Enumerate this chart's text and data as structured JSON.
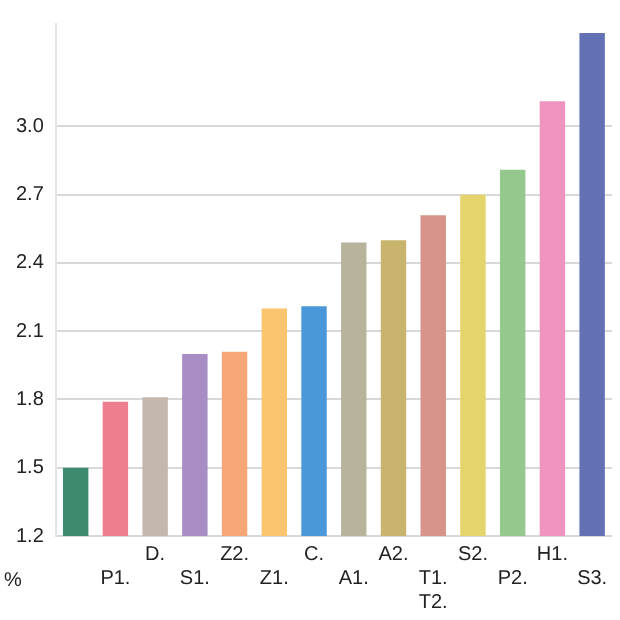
{
  "chart_data": {
    "type": "bar",
    "ylabel": "%",
    "categories": [
      null,
      "P1.",
      "D.",
      "S1.",
      "Z2.",
      "Z1.",
      "C.",
      "A1.",
      "A2.",
      "T1.\nT2.",
      "S2.",
      "P2.",
      "H1.",
      "S3."
    ],
    "values": [
      1.5,
      1.79,
      1.81,
      2.0,
      2.01,
      2.2,
      2.21,
      2.49,
      2.5,
      2.61,
      2.7,
      2.81,
      3.11,
      3.41
    ],
    "colors": [
      "#3e8a6e",
      "#ee7d8e",
      "#c4b8ae",
      "#a88cc4",
      "#f7a678",
      "#fbc46e",
      "#4a98d8",
      "#b8b49c",
      "#c8b46c",
      "#d8948a",
      "#e4d46c",
      "#94c88c",
      "#ee94be",
      "#6470b4"
    ],
    "ylim": [
      1.2,
      3.45
    ],
    "yticks": [
      1.2,
      1.5,
      1.8,
      2.1,
      2.4,
      2.7,
      {
        "value": 3,
        "label": "3.0"
      }
    ],
    "grid": "y",
    "legend": false
  }
}
